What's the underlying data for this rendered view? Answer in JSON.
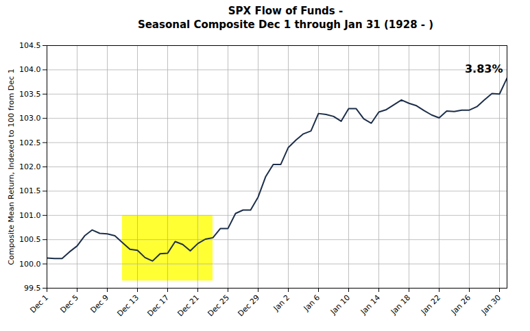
{
  "chart_data": {
    "type": "line",
    "title": "SPX Flow of Funds -",
    "subtitle": "Seasonal Composite Dec 1 through Jan 31 (1928 - )",
    "y_label": "Composite Mean Return, Indexed to 100 from Dec 1",
    "annotation": "3.83%",
    "categories": [
      "Dec 1",
      null,
      null,
      null,
      "Dec 5",
      null,
      null,
      null,
      "Dec 9",
      null,
      null,
      null,
      "Dec 13",
      null,
      null,
      null,
      "Dec 17",
      null,
      null,
      null,
      "Dec 21",
      null,
      null,
      null,
      "Dec 25",
      null,
      null,
      null,
      "Dec 29",
      null,
      null,
      null,
      "Jan 2",
      null,
      null,
      null,
      "Jan 6",
      null,
      null,
      null,
      "Jan 10",
      null,
      null,
      null,
      "Jan 14",
      null,
      null,
      null,
      "Jan 18",
      null,
      null,
      null,
      "Jan 22",
      null,
      null,
      null,
      "Jan 26",
      null,
      null,
      null,
      "Jan 30",
      null
    ],
    "values": [
      100.12,
      100.11,
      100.11,
      100.25,
      100.37,
      100.58,
      100.7,
      100.63,
      100.62,
      100.58,
      100.44,
      100.3,
      100.28,
      100.13,
      100.06,
      100.21,
      100.22,
      100.46,
      100.4,
      100.27,
      100.42,
      100.51,
      100.54,
      100.73,
      100.73,
      101.04,
      101.11,
      101.11,
      101.38,
      101.8,
      102.05,
      102.05,
      102.4,
      102.55,
      102.68,
      102.74,
      103.1,
      103.08,
      103.04,
      102.94,
      103.2,
      103.2,
      102.99,
      102.9,
      103.13,
      103.18,
      103.28,
      103.38,
      103.31,
      103.26,
      103.16,
      103.07,
      103.01,
      103.15,
      103.14,
      103.17,
      103.17,
      103.24,
      103.38,
      103.51,
      103.5,
      103.83
    ],
    "color": "#1c2e4a",
    "highlight": {
      "xlim": [
        10,
        22
      ],
      "ylim": [
        99.65,
        101.0
      ],
      "color": "#ffff33"
    },
    "ylim": [
      99.5,
      104.5
    ],
    "yticks": [
      99.5,
      {
        "value": 100,
        "label": "100.0"
      },
      100.5,
      {
        "value": 101,
        "label": "101.0"
      },
      101.5,
      {
        "value": 102,
        "label": "102.0"
      },
      102.5,
      {
        "value": 103,
        "label": "103.0"
      },
      103.5,
      {
        "value": 104,
        "label": "104.0"
      },
      104.5
    ],
    "grid": true
  }
}
